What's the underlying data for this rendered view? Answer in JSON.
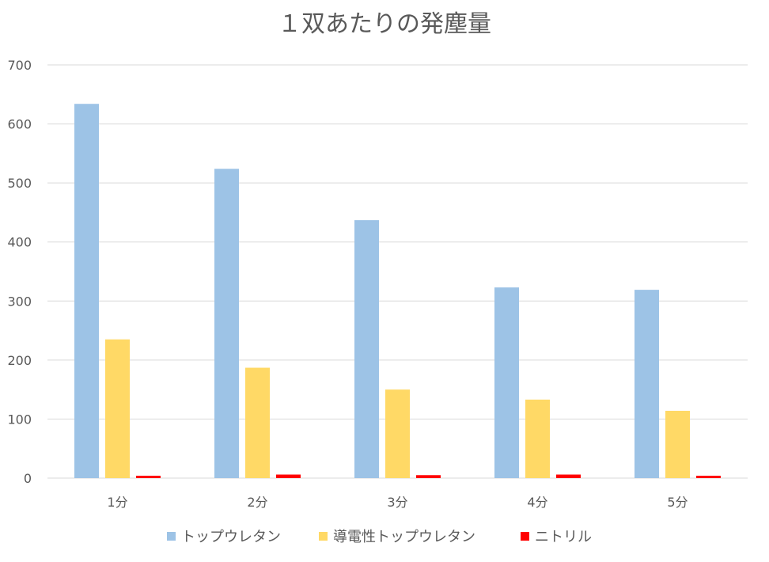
{
  "chart_data": {
    "type": "bar",
    "title": "１双あたりの発塵量",
    "xlabel": "",
    "ylabel": "",
    "categories": [
      "1分",
      "2分",
      "3分",
      "4分",
      "5分"
    ],
    "series": [
      {
        "name": "トップウレタン",
        "color": "#9dc3e6",
        "values": [
          634,
          524,
          437,
          323,
          319
        ]
      },
      {
        "name": "導電性トップウレタン",
        "color": "#ffd966",
        "values": [
          235,
          187,
          150,
          133,
          114
        ]
      },
      {
        "name": "ニトリル",
        "color": "#ff0000",
        "values": [
          4,
          6,
          5,
          6,
          4
        ]
      }
    ],
    "ylim": [
      0,
      700
    ],
    "yticks": [
      0,
      100,
      200,
      300,
      400,
      500,
      600,
      700
    ],
    "grid": true,
    "legend": "bottom"
  }
}
